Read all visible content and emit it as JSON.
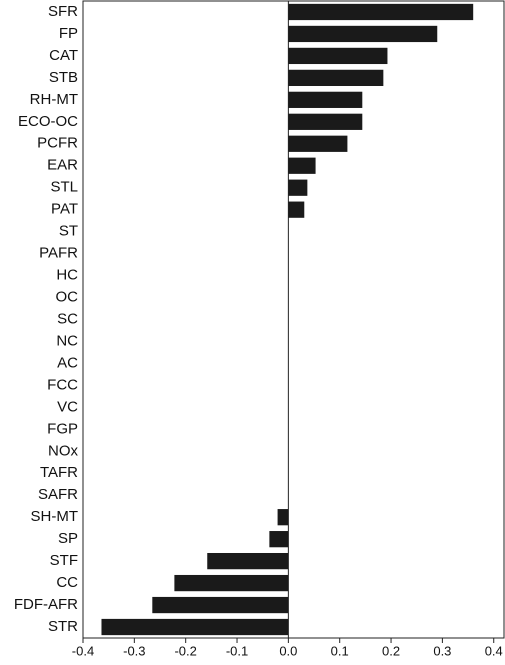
{
  "chart_data": {
    "type": "barh",
    "categories": [
      "SFR",
      "FP",
      "CAT",
      "STB",
      "RH-MT",
      "ECO-OC",
      "PCFR",
      "EAR",
      "STL",
      "PAT",
      "ST",
      "PAFR",
      "HC",
      "OC",
      "SC",
      "NC",
      "AC",
      "FCC",
      "VC",
      "FGP",
      "NOx",
      "TAFR",
      "SAFR",
      "SH-MT",
      "SP",
      "STF",
      "CC",
      "FDF-AFR",
      "STR"
    ],
    "values": [
      0.36,
      0.29,
      0.193,
      0.185,
      0.144,
      0.144,
      0.115,
      0.053,
      0.037,
      0.031,
      0,
      0,
      0,
      0,
      0,
      0,
      0,
      0,
      0,
      0,
      0,
      0,
      0,
      -0.021,
      -0.037,
      -0.158,
      -0.222,
      -0.265,
      -0.364
    ],
    "color": "#1a1a1a",
    "xlim": [
      -0.4,
      0.42
    ],
    "xticks": [
      -0.4,
      -0.3,
      -0.2,
      -0.1,
      {
        "value": 0,
        "label": "0.0"
      },
      0.1,
      0.2,
      0.3,
      0.4
    ]
  }
}
